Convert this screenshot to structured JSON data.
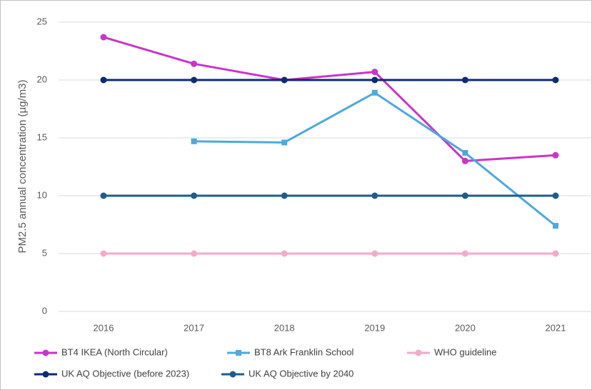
{
  "chart_data": {
    "type": "line",
    "y_label": "PM2.5 annual concentration (µg/m3)",
    "categories": [
      "2016",
      "2017",
      "2018",
      "2019",
      "2020",
      "2021"
    ],
    "series": [
      {
        "name": "BT4 IKEA (North Circular)",
        "color": "#c935c9",
        "marker": "circle",
        "values": [
          23.7,
          21.4,
          20.0,
          20.7,
          13.0,
          13.5
        ]
      },
      {
        "name": "BT8 Ark Franklin School",
        "color": "#4ea9dc",
        "marker": "square",
        "values": [
          null,
          14.7,
          14.6,
          18.9,
          13.7,
          7.4
        ]
      },
      {
        "name": "WHO guideline",
        "color": "#f5a9cb",
        "marker": "circle",
        "values": [
          5,
          5,
          5,
          5,
          5,
          5
        ]
      },
      {
        "name": "UK AQ Objective (before 2023)",
        "color": "#0e2a70",
        "marker": "circle",
        "values": [
          20,
          20,
          20,
          20,
          20,
          20
        ]
      },
      {
        "name": "UK AQ Objective by 2040",
        "color": "#1d5d8a",
        "marker": "circle",
        "values": [
          10,
          10,
          10,
          10,
          10,
          10
        ]
      }
    ],
    "ylim": [
      0,
      25
    ],
    "yticks": [
      0,
      5,
      10,
      15,
      20,
      25
    ],
    "grid": true
  }
}
